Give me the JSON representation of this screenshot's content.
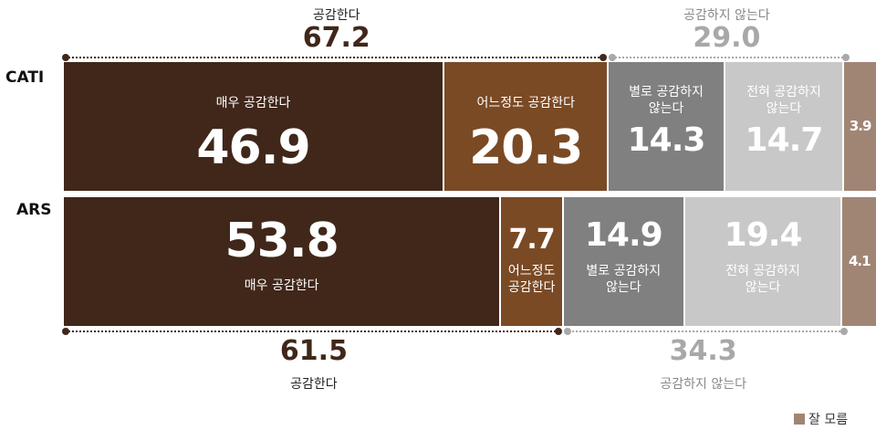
{
  "chart_data": {
    "type": "bar",
    "orientation": "horizontal",
    "stacked": true,
    "categories": [
      "CATI",
      "ARS"
    ],
    "series": [
      {
        "name": "매우 공감한다",
        "values": [
          46.9,
          53.8
        ],
        "color": "#40271a"
      },
      {
        "name": "어느정도 공감한다",
        "values": [
          20.3,
          7.7
        ],
        "color": "#7a4a25"
      },
      {
        "name": "별로 공감하지 않는다",
        "values": [
          14.3,
          14.9
        ],
        "color": "#808080"
      },
      {
        "name": "전혀 공감하지 않는다",
        "values": [
          14.7,
          19.4
        ],
        "color": "#c8c8c8"
      },
      {
        "name": "잘 모름",
        "values": [
          3.9,
          4.1
        ],
        "color": "#a08575"
      }
    ],
    "rows": [
      {
        "name": "CATI",
        "segments": [
          {
            "label": "매우 공감한다",
            "value": "46.9"
          },
          {
            "label": "어느정도 공감한다",
            "value": "20.3"
          },
          {
            "label": "별로 공감하지\n않는다",
            "value": "14.3"
          },
          {
            "label": "전혀 공감하지\n않는다",
            "value": "14.7"
          },
          {
            "label": "",
            "value": "3.9"
          }
        ],
        "agree": {
          "label": "공감한다",
          "value": "67.2"
        },
        "disagree": {
          "label": "공감하지 않는다",
          "value": "29.0"
        }
      },
      {
        "name": "ARS",
        "segments": [
          {
            "label": "매우 공감한다",
            "value": "53.8"
          },
          {
            "label": "어느정도\n공감한다",
            "value": "7.7"
          },
          {
            "label": "별로 공감하지\n않는다",
            "value": "14.9"
          },
          {
            "label": "전혀 공감하지\n않는다",
            "value": "19.4"
          },
          {
            "label": "",
            "value": "4.1"
          }
        ],
        "agree": {
          "label": "공감한다",
          "value": "61.5"
        },
        "disagree": {
          "label": "공감하지 않는다",
          "value": "34.3"
        }
      }
    ],
    "legend": [
      {
        "label": "잘 모름",
        "color": "#a08575"
      }
    ],
    "legend_position": "bottom-right",
    "colors": {
      "agree_text": "#40271a",
      "disagree_text": "#a8a8a8"
    }
  }
}
